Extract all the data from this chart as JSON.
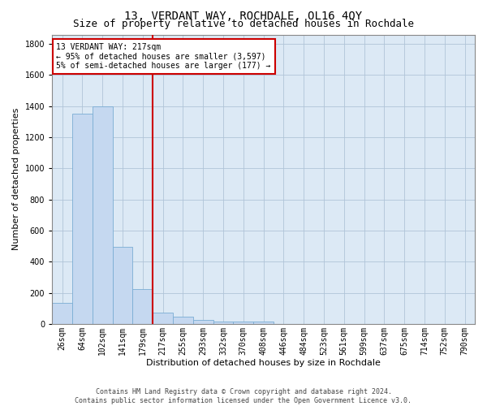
{
  "title": "13, VERDANT WAY, ROCHDALE, OL16 4QY",
  "subtitle": "Size of property relative to detached houses in Rochdale",
  "xlabel": "Distribution of detached houses by size in Rochdale",
  "ylabel": "Number of detached properties",
  "categories": [
    "26sqm",
    "64sqm",
    "102sqm",
    "141sqm",
    "179sqm",
    "217sqm",
    "255sqm",
    "293sqm",
    "332sqm",
    "370sqm",
    "408sqm",
    "446sqm",
    "484sqm",
    "523sqm",
    "561sqm",
    "599sqm",
    "637sqm",
    "675sqm",
    "714sqm",
    "752sqm",
    "790sqm"
  ],
  "values": [
    135,
    1350,
    1400,
    495,
    225,
    75,
    45,
    28,
    15,
    15,
    15,
    0,
    0,
    0,
    0,
    0,
    0,
    0,
    0,
    0,
    0
  ],
  "bar_color": "#C5D8F0",
  "bar_edge_color": "#7aadd4",
  "vline_index": 5,
  "vline_color": "#CC0000",
  "annotation_line1": "13 VERDANT WAY: 217sqm",
  "annotation_line2": "← 95% of detached houses are smaller (3,597)",
  "annotation_line3": "5% of semi-detached houses are larger (177) →",
  "annotation_box_color": "#CC0000",
  "ylim": [
    0,
    1860
  ],
  "yticks": [
    0,
    200,
    400,
    600,
    800,
    1000,
    1200,
    1400,
    1600,
    1800
  ],
  "bg_color": "#dce9f5",
  "fig_bg_color": "#ffffff",
  "grid_color": "#b0c4d8",
  "footer_line1": "Contains HM Land Registry data © Crown copyright and database right 2024.",
  "footer_line2": "Contains public sector information licensed under the Open Government Licence v3.0.",
  "title_fontsize": 10,
  "subtitle_fontsize": 9,
  "axis_label_fontsize": 8,
  "tick_fontsize": 7,
  "annotation_fontsize": 7,
  "footer_fontsize": 6
}
